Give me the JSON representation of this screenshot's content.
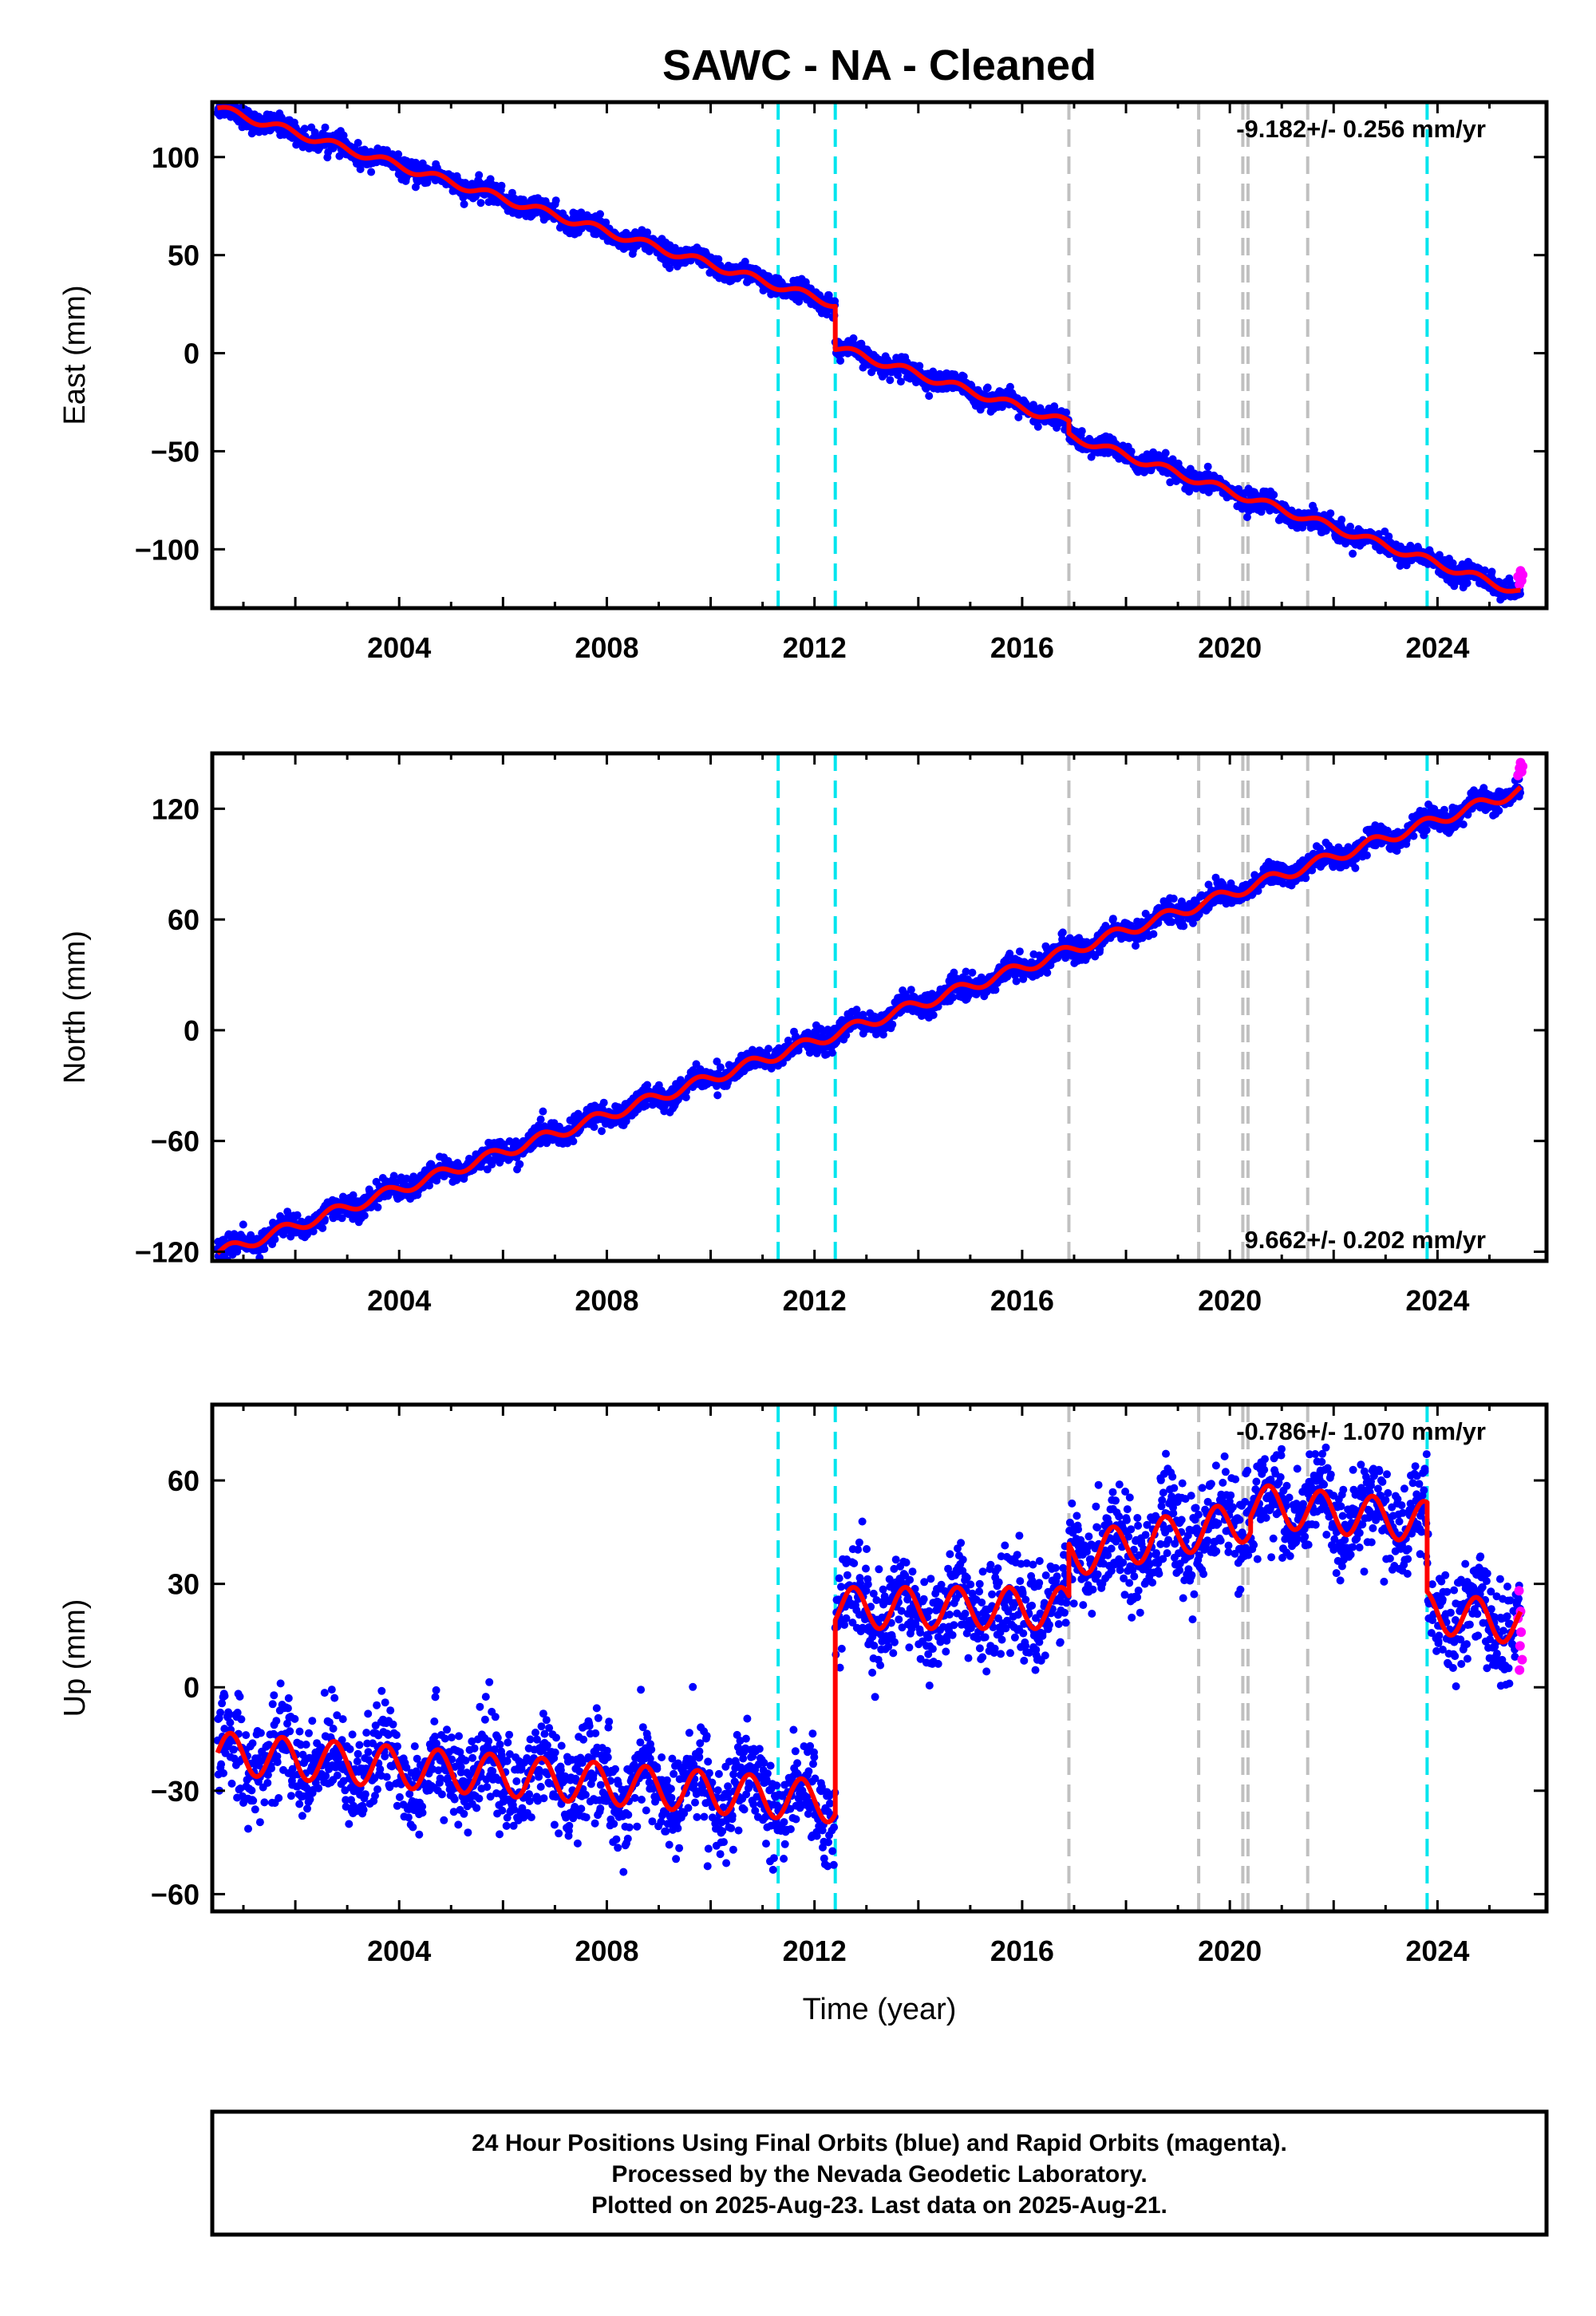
{
  "title": "SAWC  - NA - Cleaned",
  "colors": {
    "final": "#0000ff",
    "rapid": "#ff00ff",
    "model": "#ff0000",
    "steps_equipment": "#00e5ee",
    "steps_earthquake": "#c0c0c0"
  },
  "xaxis": {
    "label": "Time (year)",
    "range": [
      2000.4,
      2026.1
    ],
    "ticks": [
      "2004",
      "2008",
      "2012",
      "2016",
      "2020",
      "2024"
    ]
  },
  "footer": [
    "24 Hour Positions Using Final Orbits (blue) and Rapid Orbits (magenta).",
    "Processed by the Nevada Geodetic Laboratory.",
    "Plotted on 2025-Aug-23. Last data on 2025-Aug-21."
  ],
  "chart_data": [
    {
      "type": "scatter",
      "panel": "east",
      "ylabel": "East (mm)",
      "ylim": [
        -130,
        128
      ],
      "yticks": [
        "100",
        "50",
        "0",
        "−50",
        "−100"
      ],
      "rate_label": "-9.182+/- 0.256 mm/yr",
      "rate_position": "top-right",
      "vlines_cyan": [
        2011.3,
        2012.4,
        2023.8
      ],
      "vlines_gray": [
        2016.9,
        2019.4,
        2020.25,
        2020.35,
        2021.5
      ],
      "model_segments": [
        {
          "t0": 2000.5,
          "t1": 2012.4,
          "y0": 125,
          "slope": -8.4,
          "amp": 2
        },
        {
          "t0": 2012.4,
          "t1": 2016.9,
          "y0": 3,
          "slope": -8.6,
          "amp": 2
        },
        {
          "t0": 2016.9,
          "t1": 2025.6,
          "y0": -42,
          "slope": -9.2,
          "amp": 2
        }
      ],
      "scatter": 2.5,
      "rapid_points": [
        [
          2025.55,
          -114
        ],
        [
          2025.58,
          -118
        ],
        [
          2025.6,
          -111
        ],
        [
          2025.62,
          -116
        ],
        [
          2025.64,
          -113
        ]
      ]
    },
    {
      "type": "scatter",
      "panel": "north",
      "ylabel": "North (mm)",
      "ylim": [
        -125,
        150
      ],
      "yticks": [
        "120",
        "60",
        "0",
        "−60",
        "−120"
      ],
      "rate_label": "9.662+/- 0.202 mm/yr",
      "rate_position": "bottom-right",
      "vlines_cyan": [
        2011.3,
        2012.4,
        2023.8
      ],
      "vlines_gray": [
        2016.9,
        2019.4,
        2020.25,
        2020.35,
        2021.5
      ],
      "model_segments": [
        {
          "t0": 2000.5,
          "t1": 2025.6,
          "y0": -121,
          "slope": 10.0,
          "amp": 3
        }
      ],
      "scatter": 3,
      "rapid_points": [
        [
          2025.55,
          138
        ],
        [
          2025.58,
          142
        ],
        [
          2025.6,
          145
        ],
        [
          2025.62,
          140
        ],
        [
          2025.64,
          143
        ]
      ]
    },
    {
      "type": "scatter",
      "panel": "up",
      "ylabel": "Up (mm)",
      "ylim": [
        -65,
        82
      ],
      "yticks": [
        "60",
        "30",
        "0",
        "−30",
        "−60"
      ],
      "rate_label": "-0.786+/- 1.070 mm/yr",
      "rate_position": "top-right",
      "vlines_cyan": [
        2011.3,
        2012.4,
        2023.8
      ],
      "vlines_gray": [
        2016.9,
        2019.4,
        2020.25,
        2020.35,
        2021.5
      ],
      "model_segments": [
        {
          "t0": 2000.5,
          "t1": 2012.4,
          "y0": -19,
          "slope": -1.2,
          "amp": 6
        },
        {
          "t0": 2012.4,
          "t1": 2016.9,
          "y0": 23,
          "slope": 0,
          "amp": 6
        },
        {
          "t0": 2016.9,
          "t1": 2020.4,
          "y0": 38,
          "slope": 3.0,
          "amp": 6
        },
        {
          "t0": 2020.4,
          "t1": 2023.8,
          "y0": 53,
          "slope": -1.5,
          "amp": 6
        },
        {
          "t0": 2023.8,
          "t1": 2025.6,
          "y0": 22,
          "slope": -2.0,
          "amp": 6
        }
      ],
      "scatter": 7,
      "rapid_points": [
        [
          2025.55,
          20
        ],
        [
          2025.57,
          28
        ],
        [
          2025.59,
          12
        ],
        [
          2025.61,
          16
        ],
        [
          2025.63,
          8
        ],
        [
          2025.6,
          22
        ],
        [
          2025.58,
          5
        ]
      ]
    }
  ]
}
